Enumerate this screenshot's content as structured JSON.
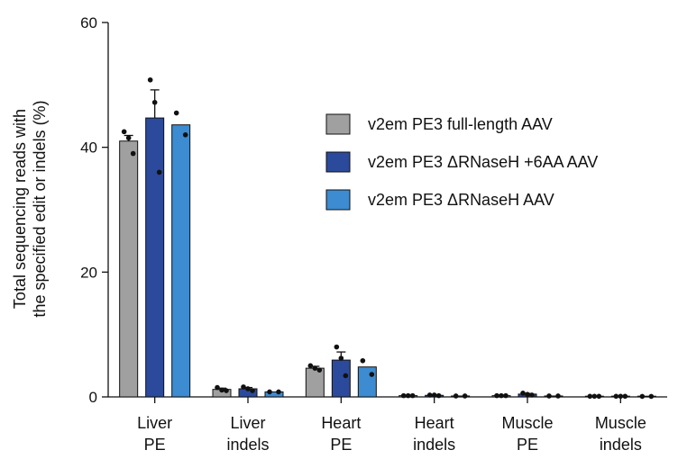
{
  "chart_data": {
    "type": "bar",
    "title": "",
    "xlabel": "",
    "ylabel_lines": [
      "Total sequencing reads with",
      "the specified edit or indels (%)"
    ],
    "ylim": [
      0,
      60
    ],
    "yticks": [
      0,
      20,
      40,
      60
    ],
    "categories": [
      [
        "Liver",
        "PE"
      ],
      [
        "Liver",
        "indels"
      ],
      [
        "Heart",
        "PE"
      ],
      [
        "Heart",
        "indels"
      ],
      [
        "Muscle",
        "PE"
      ],
      [
        "Muscle",
        "indels"
      ]
    ],
    "legend_position": "right",
    "series": [
      {
        "name": "v2em PE3 full-length AAV",
        "color": "#a0a0a0",
        "values": [
          41.0,
          1.2,
          4.6,
          0.2,
          0.2,
          0.1
        ],
        "errors": [
          0.9,
          0.2,
          0.3,
          0.05,
          0.05,
          0.02
        ],
        "points": [
          [
            42.5,
            41.5,
            39.0
          ],
          [
            1.5,
            1.1,
            1.0
          ],
          [
            5.0,
            4.6,
            4.3
          ],
          [
            0.2,
            0.2,
            0.2
          ],
          [
            0.2,
            0.2,
            0.2
          ],
          [
            0.1,
            0.1,
            0.1
          ]
        ]
      },
      {
        "name": "v2em PE3 ΔRNaseH +6AA AAV",
        "color": "#2b4a9b",
        "values": [
          44.7,
          1.3,
          5.9,
          0.25,
          0.45,
          0.12
        ],
        "errors": [
          4.5,
          0.2,
          1.3,
          0.05,
          0.1,
          0.03
        ],
        "points": [
          [
            50.8,
            47.2,
            36.0
          ],
          [
            1.6,
            1.3,
            1.0
          ],
          [
            8.0,
            6.2,
            3.4
          ],
          [
            0.3,
            0.3,
            0.2
          ],
          [
            0.6,
            0.4,
            0.3
          ],
          [
            0.1,
            0.1,
            0.1
          ]
        ]
      },
      {
        "name": "v2em PE3 ΔRNaseH AAV",
        "color": "#3d8bd0",
        "values": [
          43.6,
          0.8,
          4.8,
          0.15,
          0.15,
          0.08
        ],
        "errors": [
          0,
          0,
          0,
          0,
          0,
          0
        ],
        "points": [
          [
            45.5,
            42.0
          ],
          [
            0.8,
            0.8
          ],
          [
            5.8,
            3.6
          ],
          [
            0.15,
            0.15
          ],
          [
            0.15,
            0.15
          ],
          [
            0.08,
            0.08
          ]
        ]
      }
    ]
  }
}
